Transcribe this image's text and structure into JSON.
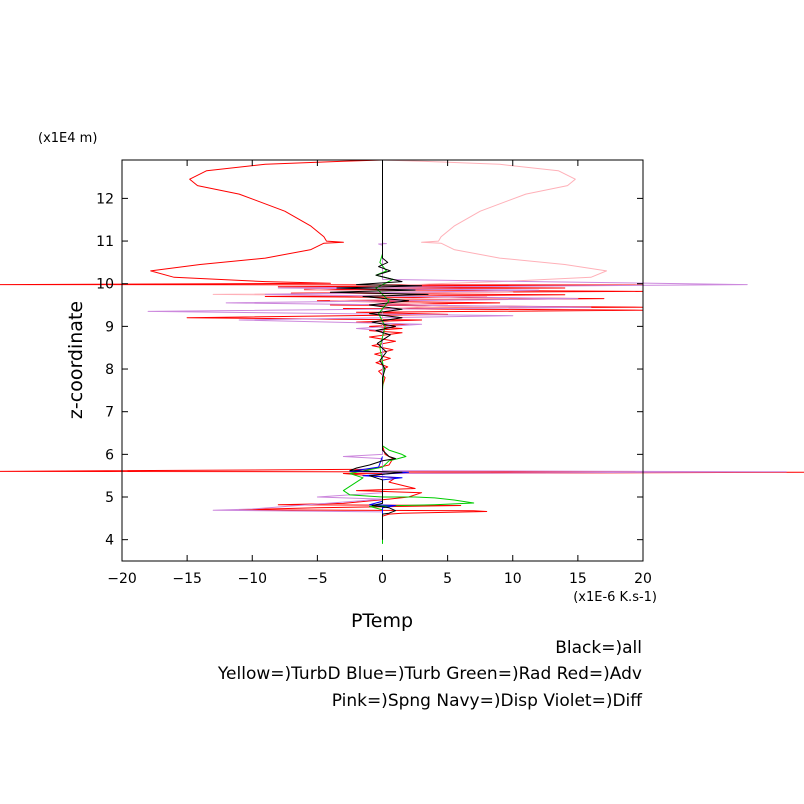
{
  "chart_data": {
    "type": "line",
    "title": "PTemp",
    "xlabel": "",
    "ylabel": "z-coordinate",
    "x_unit_label": "(x1E-6 K.s-1)",
    "y_unit_label": "(x1E4 m)",
    "xlim": [
      -20,
      20
    ],
    "ylim": [
      3.5,
      12.9
    ],
    "x_ticks": [
      -20,
      -15,
      -10,
      -5,
      0,
      5,
      10,
      15,
      20
    ],
    "y_ticks": [
      4,
      5,
      6,
      7,
      8,
      9,
      10,
      11,
      12
    ],
    "legend_lines": [
      "Black=)all",
      "Yellow=)TurbD Blue=)Turb Green=)Rad Red=)Adv",
      "Pink=)Spng Navy=)Disp Violet=)Diff"
    ],
    "grid": false,
    "series": [
      {
        "name": "Red",
        "color": "#ff0000",
        "points": [
          [
            0,
            12.9
          ],
          [
            -3,
            12.87
          ],
          [
            -9,
            12.8
          ],
          [
            -13.5,
            12.65
          ],
          [
            -14.8,
            12.45
          ],
          [
            -14.2,
            12.3
          ],
          [
            -11,
            12.1
          ],
          [
            -7.5,
            11.7
          ],
          [
            -5.5,
            11.35
          ],
          [
            -4.5,
            11.1
          ],
          [
            -4.3,
            11.0
          ],
          [
            -3.0,
            10.97
          ],
          [
            -4.5,
            10.95
          ],
          [
            -5.5,
            10.8
          ],
          [
            -9,
            10.6
          ],
          [
            -14,
            10.45
          ],
          [
            -17.8,
            10.3
          ],
          [
            -16,
            10.15
          ],
          [
            -9,
            10.05
          ],
          [
            -4,
            10.01
          ],
          [
            -30,
            9.98
          ],
          [
            20,
            9.97
          ],
          [
            -8,
            9.93
          ],
          [
            14,
            9.9
          ],
          [
            -6,
            9.87
          ],
          [
            20,
            9.82
          ],
          [
            -7,
            9.78
          ],
          [
            14,
            9.74
          ],
          [
            -9,
            9.7
          ],
          [
            17,
            9.65
          ],
          [
            -5,
            9.6
          ],
          [
            9,
            9.55
          ],
          [
            -4,
            9.5
          ],
          [
            20,
            9.45
          ],
          [
            -3,
            9.42
          ],
          [
            20,
            9.38
          ],
          [
            -2,
            9.33
          ],
          [
            5,
            9.28
          ],
          [
            -15,
            9.2
          ],
          [
            3,
            9.15
          ],
          [
            -2,
            9.1
          ],
          [
            2,
            9.05
          ],
          [
            -1,
            9.0
          ],
          [
            1.5,
            8.95
          ],
          [
            -1,
            8.9
          ],
          [
            1.5,
            8.85
          ],
          [
            -1,
            8.75
          ],
          [
            1,
            8.65
          ],
          [
            -0.8,
            8.55
          ],
          [
            0.8,
            8.45
          ],
          [
            -0.6,
            8.35
          ],
          [
            0.6,
            8.25
          ],
          [
            -0.5,
            8.15
          ],
          [
            0.4,
            8.05
          ],
          [
            -0.3,
            7.95
          ],
          [
            0.2,
            7.8
          ],
          [
            0,
            7.6
          ],
          [
            0,
            7.2
          ],
          [
            0,
            6.8
          ],
          [
            0,
            6.5
          ],
          [
            0,
            6.2
          ],
          [
            0.2,
            6.0
          ],
          [
            0.8,
            5.9
          ],
          [
            0.5,
            5.75
          ],
          [
            -1,
            5.65
          ],
          [
            -35,
            5.6
          ],
          [
            36,
            5.58
          ],
          [
            -3,
            5.55
          ],
          [
            1,
            5.45
          ],
          [
            0.5,
            5.35
          ],
          [
            2.5,
            5.2
          ],
          [
            -2,
            5.15
          ],
          [
            3,
            5.1
          ],
          [
            2,
            5.0
          ],
          [
            0.5,
            4.95
          ],
          [
            -3,
            4.85
          ],
          [
            -8,
            4.82
          ],
          [
            6,
            4.8
          ],
          [
            -5,
            4.75
          ],
          [
            -11,
            4.7
          ],
          [
            7,
            4.68
          ],
          [
            8,
            4.66
          ],
          [
            1.5,
            4.62
          ],
          [
            0.5,
            4.6
          ],
          [
            0,
            4.55
          ],
          [
            0,
            4.2
          ],
          [
            0,
            4.0
          ]
        ]
      },
      {
        "name": "Pink",
        "color": "#ffb0b8",
        "points": [
          [
            0,
            12.9
          ],
          [
            3,
            12.87
          ],
          [
            9,
            12.8
          ],
          [
            13.5,
            12.65
          ],
          [
            14.8,
            12.45
          ],
          [
            14.2,
            12.3
          ],
          [
            11,
            12.1
          ],
          [
            7.5,
            11.7
          ],
          [
            5.5,
            11.35
          ],
          [
            4.5,
            11.1
          ],
          [
            4.3,
            11.0
          ],
          [
            3.0,
            10.97
          ],
          [
            4.5,
            10.95
          ],
          [
            5.5,
            10.8
          ],
          [
            9,
            10.6
          ],
          [
            14,
            10.45
          ],
          [
            17.2,
            10.3
          ],
          [
            16,
            10.15
          ],
          [
            9,
            10.05
          ],
          [
            4,
            10.0
          ],
          [
            -6,
            9.85
          ],
          [
            10,
            9.8
          ],
          [
            -13,
            9.75
          ],
          [
            8,
            9.7
          ],
          [
            -4,
            9.6
          ],
          [
            5,
            9.5
          ],
          [
            0,
            9.4
          ],
          [
            0,
            9.0
          ]
        ]
      },
      {
        "name": "Violet",
        "color": "#cc88dd",
        "points": [
          [
            0,
            10.95
          ],
          [
            0.3,
            10.94
          ],
          [
            -0.3,
            10.93
          ],
          [
            0,
            10.9
          ],
          [
            0,
            10.1
          ],
          [
            28,
            9.98
          ],
          [
            -8,
            9.9
          ],
          [
            12,
            9.85
          ],
          [
            -9,
            9.75
          ],
          [
            15,
            9.65
          ],
          [
            -12,
            9.55
          ],
          [
            16,
            9.45
          ],
          [
            -18,
            9.35
          ],
          [
            10,
            9.25
          ],
          [
            -11,
            9.15
          ],
          [
            3,
            9.05
          ],
          [
            -2,
            8.95
          ],
          [
            0,
            8.9
          ],
          [
            0,
            6.0
          ],
          [
            -3,
            5.95
          ],
          [
            0,
            5.9
          ],
          [
            0,
            5.62
          ],
          [
            31,
            5.59
          ],
          [
            0,
            5.55
          ],
          [
            0,
            5.1
          ],
          [
            -5,
            5.0
          ],
          [
            0,
            4.95
          ],
          [
            -10,
            4.72
          ],
          [
            -13,
            4.69
          ],
          [
            0,
            4.65
          ],
          [
            0,
            4.5
          ]
        ]
      },
      {
        "name": "Green",
        "color": "#00cc00",
        "points": [
          [
            0,
            10.7
          ],
          [
            -0.2,
            10.5
          ],
          [
            0.3,
            10.3
          ],
          [
            -0.5,
            10.2
          ],
          [
            0.8,
            10.1
          ],
          [
            -0.5,
            9.9
          ],
          [
            0.5,
            9.6
          ],
          [
            -0.3,
            9.3
          ],
          [
            0.2,
            9.0
          ],
          [
            -0.2,
            8.5
          ],
          [
            0.1,
            8.0
          ],
          [
            0,
            7.5
          ],
          [
            0,
            7.0
          ],
          [
            0,
            6.5
          ],
          [
            0,
            6.2
          ],
          [
            0.5,
            6.1
          ],
          [
            1.5,
            6.0
          ],
          [
            1.8,
            5.95
          ],
          [
            1.2,
            5.9
          ],
          [
            0.5,
            5.85
          ],
          [
            0,
            5.7
          ],
          [
            -2.5,
            5.55
          ],
          [
            -1.5,
            5.45
          ],
          [
            -3,
            5.15
          ],
          [
            -2.5,
            5.05
          ],
          [
            0,
            5.0
          ],
          [
            2.5,
            5.0
          ],
          [
            4,
            4.98
          ],
          [
            5.5,
            4.93
          ],
          [
            7,
            4.86
          ],
          [
            4,
            4.82
          ],
          [
            1.5,
            4.8
          ],
          [
            -1,
            4.78
          ],
          [
            0,
            4.7
          ],
          [
            0,
            4.3
          ],
          [
            0,
            3.9
          ]
        ]
      },
      {
        "name": "Blue",
        "color": "#0000ff",
        "points": [
          [
            0,
            5.95
          ],
          [
            -0.3,
            5.7
          ],
          [
            -2.5,
            5.6
          ],
          [
            2,
            5.58
          ],
          [
            -1.5,
            5.5
          ],
          [
            1.5,
            5.45
          ],
          [
            0,
            5.4
          ],
          [
            0,
            4.9
          ],
          [
            -1,
            4.82
          ],
          [
            1,
            4.8
          ],
          [
            0,
            4.75
          ],
          [
            0,
            4.6
          ]
        ]
      },
      {
        "name": "Black",
        "color": "#000000",
        "points": [
          [
            0,
            12.9
          ],
          [
            0,
            10.6
          ],
          [
            0.4,
            10.5
          ],
          [
            -0.3,
            10.4
          ],
          [
            0.6,
            10.3
          ],
          [
            -0.5,
            10.2
          ],
          [
            1.5,
            10.05
          ],
          [
            -2,
            9.98
          ],
          [
            3,
            9.95
          ],
          [
            -3.5,
            9.9
          ],
          [
            2.5,
            9.85
          ],
          [
            -4,
            9.8
          ],
          [
            3.5,
            9.75
          ],
          [
            -1.5,
            9.7
          ],
          [
            2,
            9.6
          ],
          [
            -1,
            9.5
          ],
          [
            1.5,
            9.4
          ],
          [
            -1,
            9.3
          ],
          [
            1.5,
            9.2
          ],
          [
            -0.8,
            9.1
          ],
          [
            1,
            9.0
          ],
          [
            -0.5,
            8.9
          ],
          [
            0.6,
            8.8
          ],
          [
            -0.4,
            8.6
          ],
          [
            0.3,
            8.4
          ],
          [
            -0.2,
            8.2
          ],
          [
            0.2,
            8.0
          ],
          [
            0,
            7.8
          ],
          [
            0,
            6.1
          ],
          [
            0.5,
            5.95
          ],
          [
            1,
            5.9
          ],
          [
            0,
            5.85
          ],
          [
            -1,
            5.75
          ],
          [
            -2,
            5.68
          ],
          [
            -2.5,
            5.62
          ],
          [
            1.5,
            5.58
          ],
          [
            -1,
            5.5
          ],
          [
            0,
            5.4
          ],
          [
            0,
            4.85
          ],
          [
            -0.8,
            4.8
          ],
          [
            0.5,
            4.75
          ],
          [
            1,
            4.68
          ],
          [
            0.5,
            4.62
          ],
          [
            0,
            4.6
          ],
          [
            0,
            4.0
          ]
        ]
      }
    ]
  }
}
